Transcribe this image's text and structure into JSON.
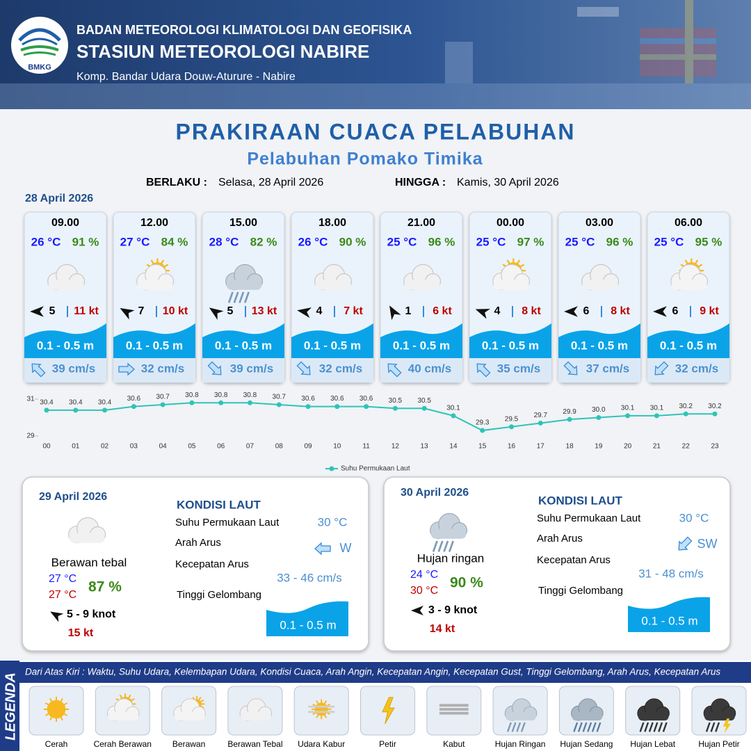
{
  "header": {
    "logo": "BMKG",
    "agency": "BADAN METEOROLOGI KLIMATOLOGI DAN GEOFISIKA",
    "station": "STASIUN METEOROLOGI NABIRE",
    "address": "Komp. Bandar Udara Douw-Aturure - Nabire"
  },
  "title": "PRAKIRAAN CUACA PELABUHAN",
  "subtitle": "Pelabuhan Pomako Timika",
  "valid_from_label": "BERLAKU :",
  "valid_from": "Selasa, 28 April 2026",
  "valid_to_label": "HINGGA :",
  "valid_to": "Kamis, 30 April 2026",
  "forecast_date": "28 April 2026",
  "forecast": [
    {
      "time": "09.00",
      "temperature": "26 °C",
      "humidity": "91 %",
      "wind": 5,
      "gust": "11 kt",
      "wave": "0.1 - 0.5 m",
      "current": "39 cm/s"
    },
    {
      "time": "12.00",
      "temperature": "27 °C",
      "humidity": "84 %",
      "wind": 7,
      "gust": "10 kt",
      "wave": "0.1 - 0.5 m",
      "current": "32 cm/s"
    },
    {
      "time": "15.00",
      "temperature": "28 °C",
      "humidity": "82 %",
      "wind": 5,
      "gust": "13 kt",
      "wave": "0.1 - 0.5 m",
      "current": "39 cm/s"
    },
    {
      "time": "18.00",
      "temperature": "26 °C",
      "humidity": "90 %",
      "wind": 4,
      "gust": "7 kt",
      "wave": "0.1 - 0.5 m",
      "current": "32 cm/s"
    },
    {
      "time": "21.00",
      "temperature": "25 °C",
      "humidity": "96 %",
      "wind": 1,
      "gust": "6 kt",
      "wave": "0.1 - 0.5 m",
      "current": "40 cm/s"
    },
    {
      "time": "00.00",
      "temperature": "25 °C",
      "humidity": "97 %",
      "wind": 4,
      "gust": "8 kt",
      "wave": "0.1 - 0.5 m",
      "current": "35 cm/s"
    },
    {
      "time": "03.00",
      "temperature": "25 °C",
      "humidity": "96 %",
      "wind": 6,
      "gust": "8 kt",
      "wave": "0.1 - 0.5 m",
      "current": "37 cm/s"
    },
    {
      "time": "06.00",
      "temperature": "25 °C",
      "humidity": "95 %",
      "wind": 6,
      "gust": "9 kt",
      "wave": "0.1 - 0.5 m",
      "current": "32 cm/s"
    }
  ],
  "chart_data": {
    "type": "line",
    "categories": [
      "00",
      "01",
      "02",
      "03",
      "04",
      "05",
      "06",
      "07",
      "08",
      "09",
      "10",
      "11",
      "12",
      "13",
      "14",
      "15",
      "16",
      "17",
      "18",
      "19",
      "20",
      "21",
      "22",
      "23"
    ],
    "series": [
      {
        "name": "Suhu Permukaan Laut",
        "color": "#2ec4b6",
        "values": [
          30.4,
          30.4,
          30.4,
          30.6,
          30.7,
          30.8,
          30.8,
          30.8,
          30.7,
          30.6,
          30.6,
          30.6,
          30.5,
          30.5,
          30.1,
          29.3,
          29.5,
          29.7,
          29.9,
          30.0,
          30.1,
          30.1,
          30.2,
          30.2
        ],
        "value_labels": [
          "30.4",
          "30.4",
          "30.4",
          "30.6",
          "30.7",
          "30.8",
          "30.8",
          "30.8",
          "30.7",
          "30.6",
          "30.6",
          "30.6",
          "30.5",
          "30.5",
          "30.1",
          "29.3",
          "29.5",
          "29.7",
          "29.9",
          "30.0",
          "30.1",
          "30.1",
          "30.2",
          "30.2"
        ]
      }
    ],
    "ylim": [
      29,
      31
    ],
    "yticks": [
      29,
      31
    ]
  },
  "daily": [
    {
      "date": "29 April 2026",
      "weather": "Berawan tebal",
      "temp_min": "27 °C",
      "temp_max": "27 °C",
      "humidity": "87 %",
      "wind": "5  - 9 knot",
      "gust": "15 kt",
      "condition_title": "KONDISI LAUT",
      "sst_label": "Suhu Permukaan Laut",
      "sst": "30 °C",
      "current_dir_label": "Arah Arus",
      "current_dir": "W",
      "current_speed_label": "Kecepatan Arus",
      "current_speed": "33 - 46 cm/s",
      "wave_label": "Tinggi Gelombang",
      "wave": "0.1 - 0.5 m"
    },
    {
      "date": "30 April 2026",
      "weather": "Hujan ringan",
      "temp_min": "24 °C",
      "temp_max": "30 °C",
      "humidity": "90 %",
      "wind": "3  - 9 knot",
      "gust": "14 kt",
      "condition_title": "KONDISI LAUT",
      "sst_label": "Suhu Permukaan Laut",
      "sst": "30 °C",
      "current_dir_label": "Arah Arus",
      "current_dir": "SW",
      "current_speed_label": "Kecepatan Arus",
      "current_speed": "31 - 48 cm/s",
      "wave_label": "Tinggi Gelombang",
      "wave": "0.1 - 0.5 m"
    }
  ],
  "legend": {
    "title": "LEGENDA",
    "description": "Dari Atas Kiri : Waktu, Suhu Udara, Kelembapan Udara, Kondisi Cuaca, Arah Angin, Kecepatan Angin, Kecepatan Gust, Tinggi Gelombang, Arah Arus, Kecepatan Arus",
    "items": [
      "Cerah",
      "Cerah Berawan",
      "Berawan",
      "Berawan Tebal",
      "Udara Kabur",
      "Petir",
      "Kabut",
      "Hujan Ringan",
      "Hujan Sedang",
      "Hujan Lebat",
      "Hujan Petir"
    ]
  }
}
